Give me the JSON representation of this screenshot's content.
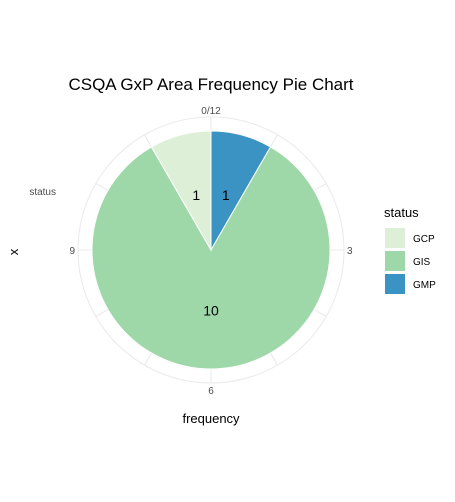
{
  "chart_data": {
    "type": "pie",
    "title": "CSQA GxP Area Frequency Pie Chart",
    "xlabel": "frequency",
    "ylabel": "x",
    "y_category_label": "status",
    "theta_ticks": [
      "0/12",
      "3",
      "6",
      "9"
    ],
    "legend": {
      "title": "status",
      "position": "right"
    },
    "slices": [
      {
        "label": "GCP",
        "value": 1,
        "color": "#deefd8"
      },
      {
        "label": "GIS",
        "value": 10,
        "color": "#9ed8a8"
      },
      {
        "label": "GMP",
        "value": 1,
        "color": "#3b93c3"
      }
    ],
    "slice_order_clockwise_from_top": [
      "GMP",
      "GIS",
      "GCP"
    ],
    "total": 12
  }
}
